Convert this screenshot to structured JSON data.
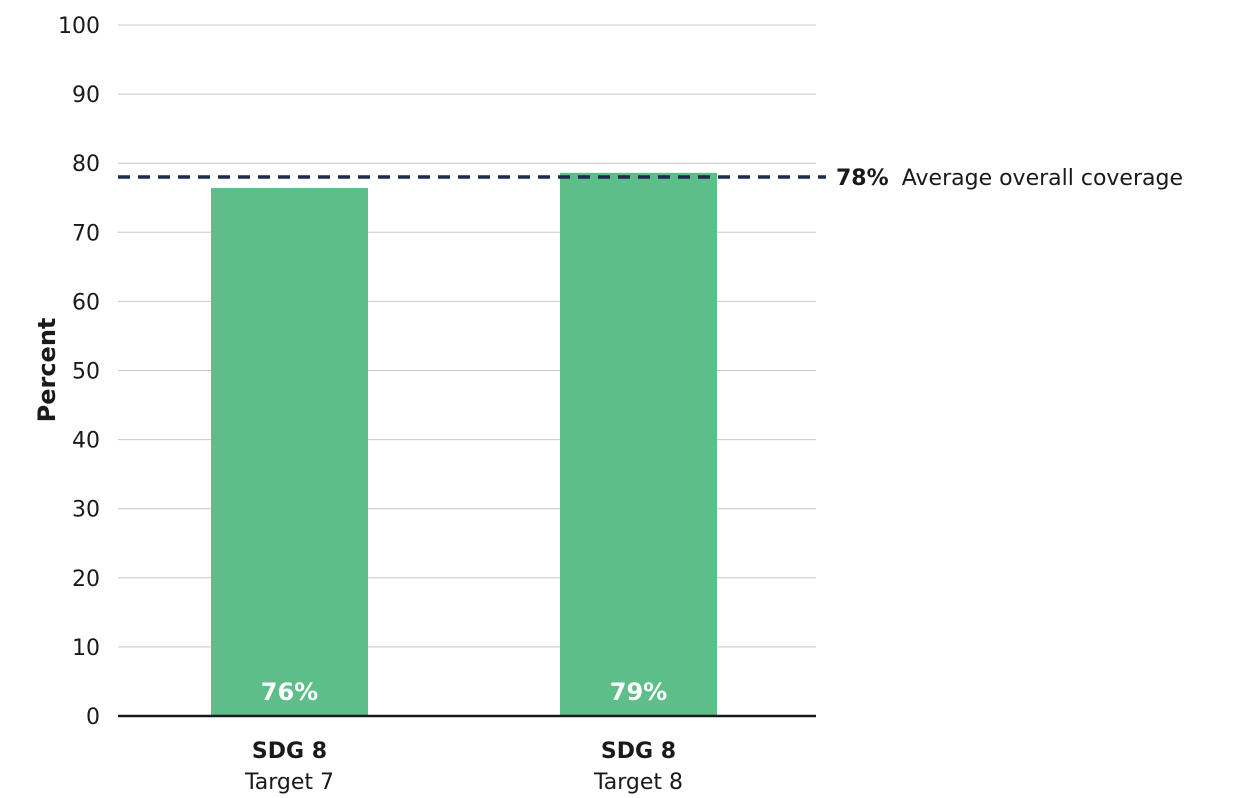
{
  "chart_data": {
    "type": "bar",
    "ylabel": "Percent",
    "ylim": [
      0,
      100
    ],
    "yticks": [
      0,
      10,
      20,
      30,
      40,
      50,
      60,
      70,
      80,
      90,
      100
    ],
    "grid": true,
    "categories": [
      {
        "main": "SDG 8",
        "sub": "Target 7"
      },
      {
        "main": "SDG 8",
        "sub": "Target 8"
      }
    ],
    "values": [
      76.4,
      78.6
    ],
    "data_labels": [
      "76%",
      "79%"
    ],
    "reference_line": {
      "value": 78,
      "value_label": "78%",
      "label": "Average overall coverage",
      "style": "dashed"
    },
    "colors": {
      "bar": "#5dbe8a",
      "reference_line": "#1c2b4a",
      "grid": "#c8c8c8",
      "axis": "#1a1a1a"
    }
  }
}
